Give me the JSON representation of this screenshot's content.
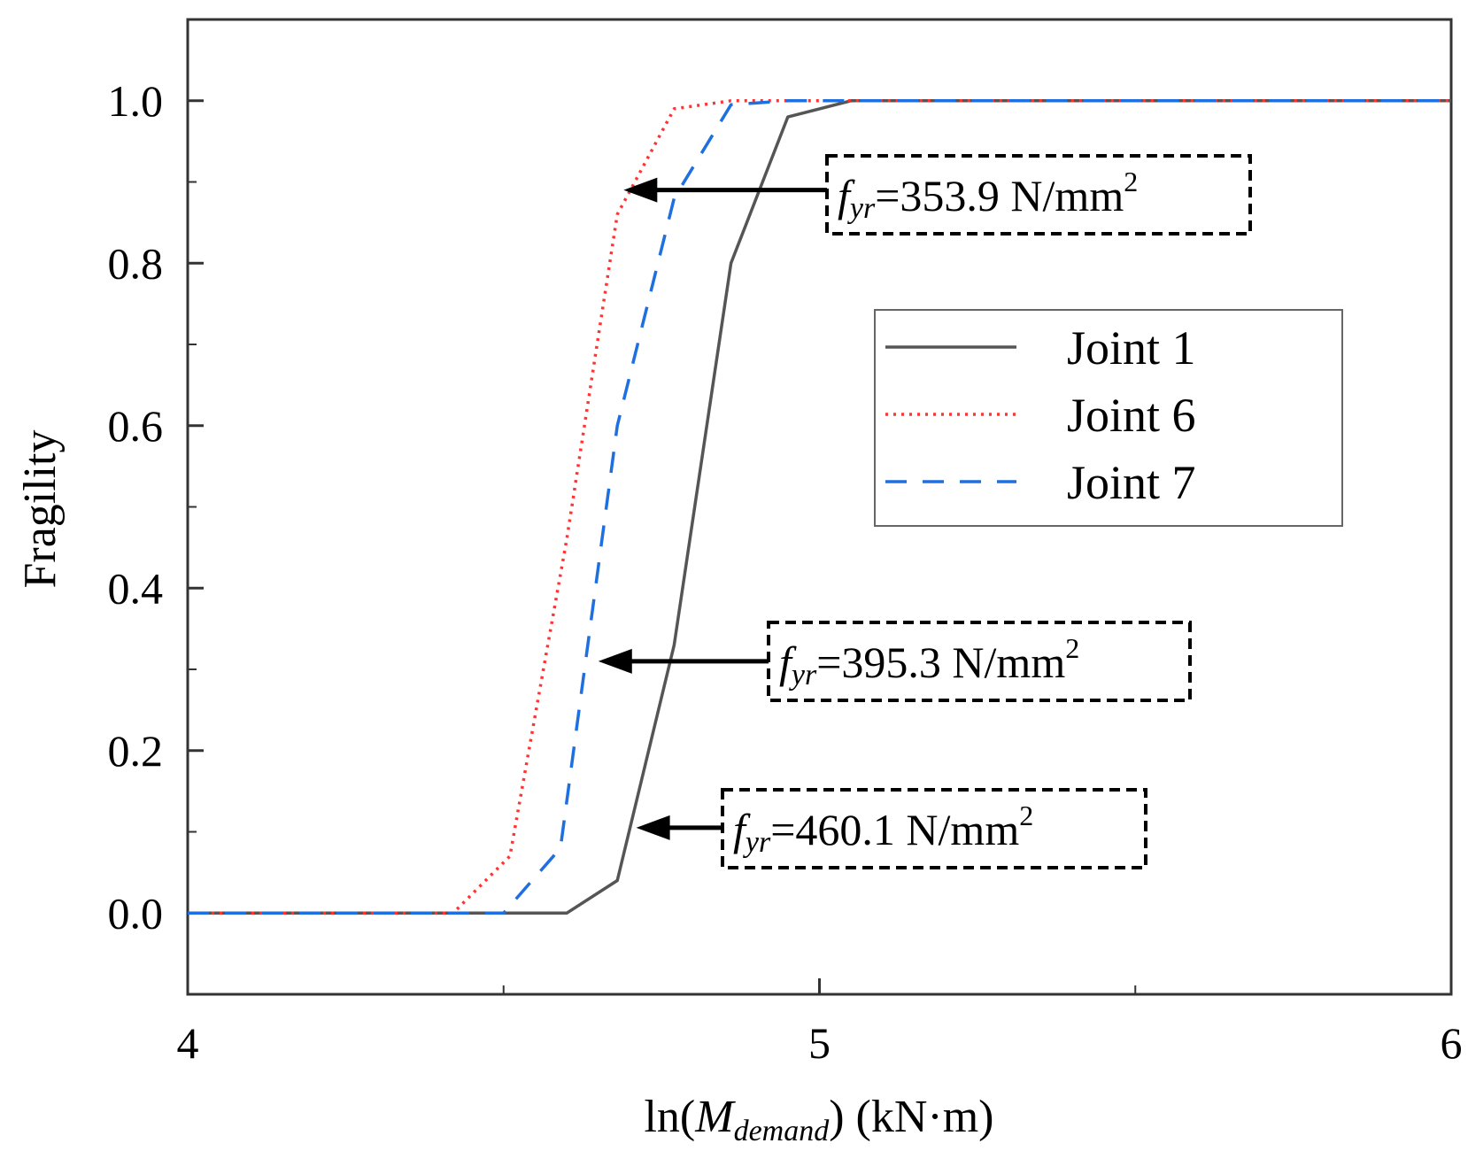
{
  "chart_data": {
    "type": "line",
    "xlabel": {
      "prefix": "ln(",
      "symbol": "M",
      "subscript": "demand",
      "suffix": ") (kN·m)"
    },
    "ylabel": "Fragility",
    "xlim": [
      4,
      6
    ],
    "ylim": [
      -0.1,
      1.1
    ],
    "x_ticks": [
      4,
      5,
      6
    ],
    "x_tick_labels": [
      "4",
      "5",
      "6"
    ],
    "y_ticks": [
      0.0,
      0.2,
      0.4,
      0.6,
      0.8,
      1.0
    ],
    "y_tick_labels": [
      "0.0",
      "0.2",
      "0.4",
      "0.6",
      "0.8",
      "1.0"
    ],
    "grid": false,
    "legend_position": "center-right",
    "series": [
      {
        "name": "Joint 1",
        "color": "#555555",
        "style": "solid",
        "x": [
          4.0,
          4.5,
          4.6,
          4.68,
          4.77,
          4.86,
          4.95,
          5.05,
          6.0
        ],
        "y": [
          0.0,
          0.0,
          0.0,
          0.04,
          0.33,
          0.8,
          0.98,
          1.0,
          1.0
        ]
      },
      {
        "name": "Joint 6",
        "color": "#ff3333",
        "style": "dotted",
        "x": [
          4.0,
          4.42,
          4.51,
          4.6,
          4.68,
          4.77,
          4.86,
          4.95,
          6.0
        ],
        "y": [
          0.0,
          0.0,
          0.07,
          0.46,
          0.86,
          0.99,
          1.0,
          1.0,
          1.0
        ]
      },
      {
        "name": "Joint 7",
        "color": "#1e6fe0",
        "style": "dashed",
        "x": [
          4.0,
          4.5,
          4.59,
          4.68,
          4.77,
          4.86,
          4.95,
          6.0
        ],
        "y": [
          0.0,
          0.0,
          0.08,
          0.6,
          0.88,
          0.995,
          1.0,
          1.0
        ]
      }
    ],
    "annotations": [
      {
        "symbol": "f",
        "subscript": "yr",
        "value": "=353.9 N/mm",
        "superscript": "2",
        "arrow_to": {
          "x": 4.69,
          "y": 0.89
        }
      },
      {
        "symbol": "f",
        "subscript": "yr",
        "value": "=395.3 N/mm",
        "superscript": "2",
        "arrow_to": {
          "x": 4.65,
          "y": 0.31
        }
      },
      {
        "symbol": "f",
        "subscript": "yr",
        "value": "=460.1 N/mm",
        "superscript": "2",
        "arrow_to": {
          "x": 4.71,
          "y": 0.105
        }
      }
    ]
  }
}
